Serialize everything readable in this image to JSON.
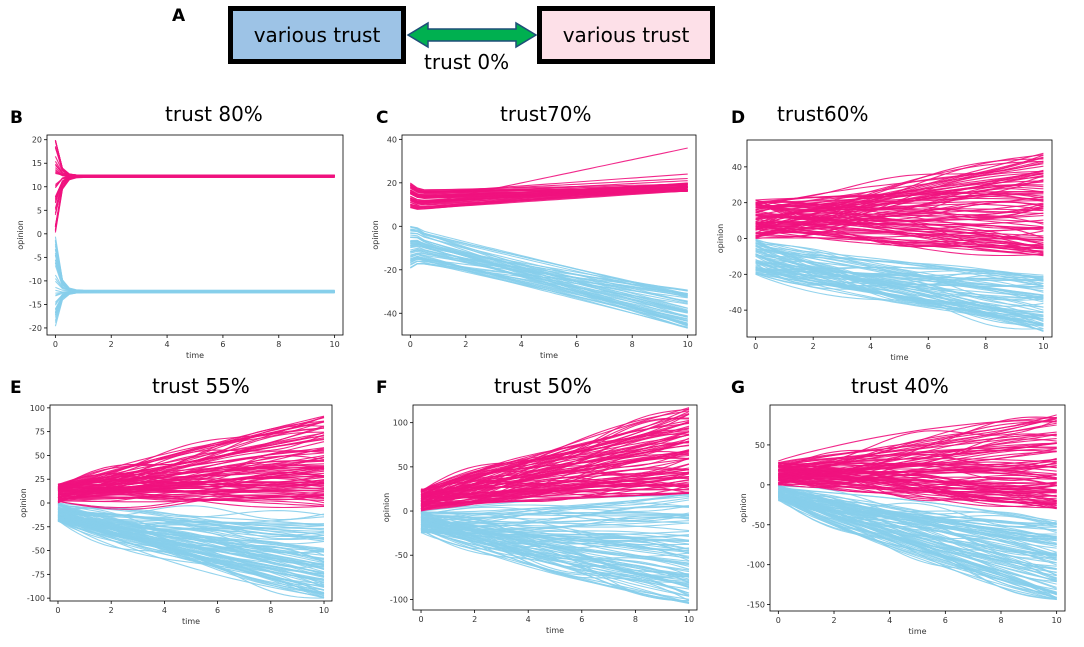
{
  "panel_a": {
    "label": "A",
    "left_box": "various trust",
    "right_box": "various trust",
    "arrow_label": "trust 0%",
    "colors": {
      "left_fill": "#9dc3e6",
      "right_fill": "#fde0e8",
      "arrow": "#00b050"
    }
  },
  "colors": {
    "pink": "#f0127e",
    "blue": "#87ceeb"
  },
  "chart_data": [
    {
      "type": "line",
      "label": "B",
      "title": "trust 80%",
      "xlabel": "time",
      "ylabel": "opinion",
      "xlim": [
        -0.3,
        10.3
      ],
      "ylim": [
        -21.5,
        21
      ],
      "xticks": [
        0,
        2,
        4,
        6,
        8,
        10
      ],
      "yticks": [
        -20,
        -15,
        -10,
        -5,
        0,
        5,
        10,
        15,
        20
      ],
      "series": [
        {
          "name": "pink group",
          "color": "#f0127e",
          "pattern": "converge",
          "start_range": [
            0,
            20
          ],
          "end_range": [
            12,
            12.5
          ],
          "count": 40
        },
        {
          "name": "blue group",
          "color": "#87ceeb",
          "pattern": "converge",
          "start_range": [
            -20,
            0
          ],
          "end_range": [
            -12.5,
            -12
          ],
          "count": 40
        }
      ]
    },
    {
      "type": "line",
      "label": "C",
      "title": "trust70%",
      "xlabel": "time",
      "ylabel": "opinion",
      "xlim": [
        -0.3,
        10.3
      ],
      "ylim": [
        -50,
        42
      ],
      "xticks": [
        0,
        2,
        4,
        6,
        8,
        10
      ],
      "yticks": [
        -40,
        -20,
        0,
        20,
        40
      ],
      "series": [
        {
          "name": "pink group",
          "color": "#f0127e",
          "pattern": "diverge",
          "start_range": [
            8,
            20
          ],
          "end_range": [
            16,
            20
          ],
          "outliers_end": [
            36,
            24,
            22,
            21
          ],
          "count": 50
        },
        {
          "name": "blue group",
          "color": "#87ceeb",
          "pattern": "diverge",
          "start_range": [
            -20,
            0
          ],
          "end_range": [
            -47,
            -29
          ],
          "count": 50
        }
      ]
    },
    {
      "type": "line",
      "label": "D",
      "title": "trust60%",
      "xlabel": "time",
      "ylabel": "opinion",
      "xlim": [
        -0.3,
        10.3
      ],
      "ylim": [
        -55,
        55
      ],
      "xticks": [
        0,
        2,
        4,
        6,
        8,
        10
      ],
      "yticks": [
        -40,
        -20,
        0,
        20,
        40
      ],
      "series": [
        {
          "name": "pink group",
          "color": "#f0127e",
          "pattern": "spread",
          "start_range": [
            0,
            22
          ],
          "end_range": [
            -10,
            50
          ],
          "count": 90
        },
        {
          "name": "blue group",
          "color": "#87ceeb",
          "pattern": "spread",
          "start_range": [
            -20,
            0
          ],
          "end_range": [
            -53,
            -20
          ],
          "count": 70
        }
      ]
    },
    {
      "type": "line",
      "label": "E",
      "title": "trust 55%",
      "xlabel": "time",
      "ylabel": "opinion",
      "xlim": [
        -0.3,
        10.3
      ],
      "ylim": [
        -103,
        103
      ],
      "xticks": [
        0,
        2,
        4,
        6,
        8,
        10
      ],
      "yticks": [
        -100,
        -75,
        -50,
        -25,
        0,
        25,
        50,
        75,
        100
      ],
      "series": [
        {
          "name": "pink group",
          "color": "#f0127e",
          "pattern": "spread",
          "start_range": [
            0,
            20
          ],
          "end_range": [
            -5,
            92
          ],
          "count": 90
        },
        {
          "name": "blue group",
          "color": "#87ceeb",
          "pattern": "spread",
          "start_range": [
            -20,
            0
          ],
          "end_range": [
            -100,
            -10
          ],
          "count": 90
        }
      ]
    },
    {
      "type": "line",
      "label": "F",
      "title": "trust 50%",
      "xlabel": "time",
      "ylabel": "opinion",
      "xlim": [
        -0.3,
        10.3
      ],
      "ylim": [
        -112,
        120
      ],
      "xticks": [
        0,
        2,
        4,
        6,
        8,
        10
      ],
      "yticks": [
        -100,
        -50,
        0,
        50,
        100
      ],
      "series": [
        {
          "name": "pink group",
          "color": "#f0127e",
          "pattern": "spread",
          "start_range": [
            0,
            25
          ],
          "end_range": [
            20,
            117
          ],
          "count": 90
        },
        {
          "name": "blue group",
          "color": "#87ceeb",
          "pattern": "spread",
          "start_range": [
            -25,
            0
          ],
          "end_range": [
            -105,
            20
          ],
          "count": 90
        }
      ]
    },
    {
      "type": "line",
      "label": "G",
      "title": "trust 40%",
      "xlabel": "time",
      "ylabel": "opinion",
      "xlim": [
        -0.3,
        10.3
      ],
      "ylim": [
        -158,
        100
      ],
      "xticks": [
        0,
        2,
        4,
        6,
        8,
        10
      ],
      "yticks": [
        -150,
        -100,
        -50,
        0,
        50
      ],
      "series": [
        {
          "name": "pink group",
          "color": "#f0127e",
          "pattern": "spread",
          "start_range": [
            0,
            30
          ],
          "end_range": [
            -30,
            88
          ],
          "count": 90
        },
        {
          "name": "blue group",
          "color": "#87ceeb",
          "pattern": "spread",
          "start_range": [
            -20,
            0
          ],
          "end_range": [
            -145,
            -45
          ],
          "count": 90
        }
      ]
    }
  ]
}
